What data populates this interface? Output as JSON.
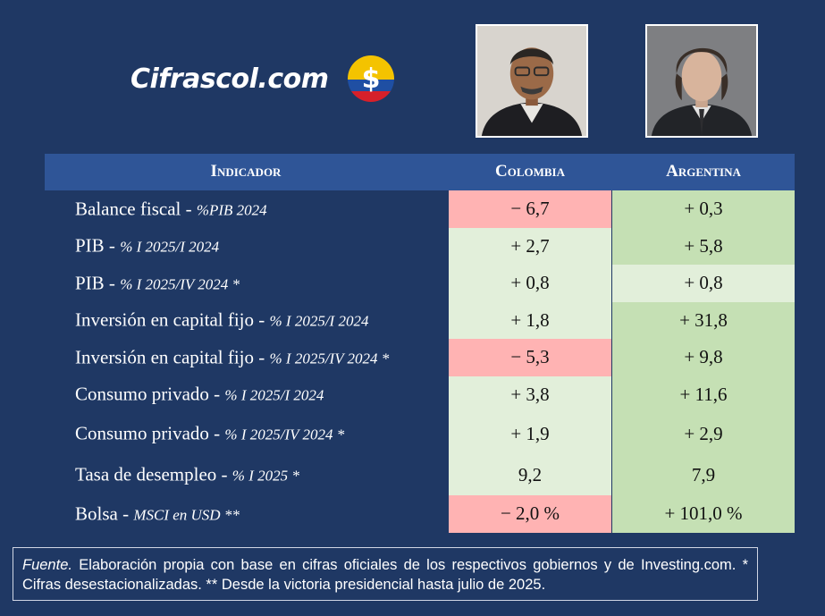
{
  "brand": {
    "name": "Cifrascol.com",
    "coin_symbol": "$",
    "colors": [
      "#f4c300",
      "#1f4fa3",
      "#d6202a"
    ]
  },
  "photos": [
    {
      "name": "colombia-president-photo"
    },
    {
      "name": "argentina-president-photo"
    }
  ],
  "table": {
    "headers": {
      "indicator": "Indicador",
      "colombia": "Colombia",
      "argentina": "Argentina"
    },
    "rows": [
      {
        "label": "Balance fiscal - ",
        "unit": "%PIB 2024",
        "colombia": "− 6,7",
        "argentina": "+ 0,3",
        "col_color": "red",
        "arg_color": "green"
      },
      {
        "label": "PIB - ",
        "unit": "% I 2025/I 2024",
        "colombia": "+ 2,7",
        "argentina": "+ 5,8",
        "col_color": "light",
        "arg_color": "green"
      },
      {
        "label": "PIB - ",
        "unit": "% I 2025/IV 2024 *",
        "colombia": "+ 0,8",
        "argentina": "+ 0,8",
        "col_color": "light",
        "arg_color": "light"
      },
      {
        "label": "Inversión en capital fijo - ",
        "unit": "% I 2025/I 2024",
        "colombia": "+ 1,8",
        "argentina": "+ 31,8",
        "col_color": "light",
        "arg_color": "green"
      },
      {
        "label": "Inversión en capital fijo - ",
        "unit": "% I 2025/IV 2024 *",
        "colombia": "− 5,3",
        "argentina": "+ 9,8",
        "col_color": "red",
        "arg_color": "green"
      },
      {
        "label": "Consumo privado - ",
        "unit": "% I 2025/I 2024",
        "colombia": "+ 3,8",
        "argentina": "+ 11,6",
        "col_color": "light",
        "arg_color": "green"
      },
      {
        "label": "Consumo privado - ",
        "unit": "% I 2025/IV 2024 *",
        "colombia": "+ 1,9",
        "argentina": "+ 2,9",
        "col_color": "light",
        "arg_color": "green"
      },
      {
        "label": "Tasa de desempleo - ",
        "unit": "% I 2025 *",
        "colombia": "9,2",
        "argentina": "7,9",
        "col_color": "light",
        "arg_color": "green"
      },
      {
        "label": "Bolsa - ",
        "unit": "MSCI en USD **",
        "colombia": "− 2,0 %",
        "argentina": "+ 101,0 %",
        "col_color": "red",
        "arg_color": "green"
      }
    ]
  },
  "source": {
    "label": "Fuente.",
    "text": " Elaboración propia con base en cifras oficiales de los respectivos gobiernos y de Investing.com. * Cifras desestacionalizadas. ** Desde la victoria presidencial hasta julio de 2025."
  }
}
